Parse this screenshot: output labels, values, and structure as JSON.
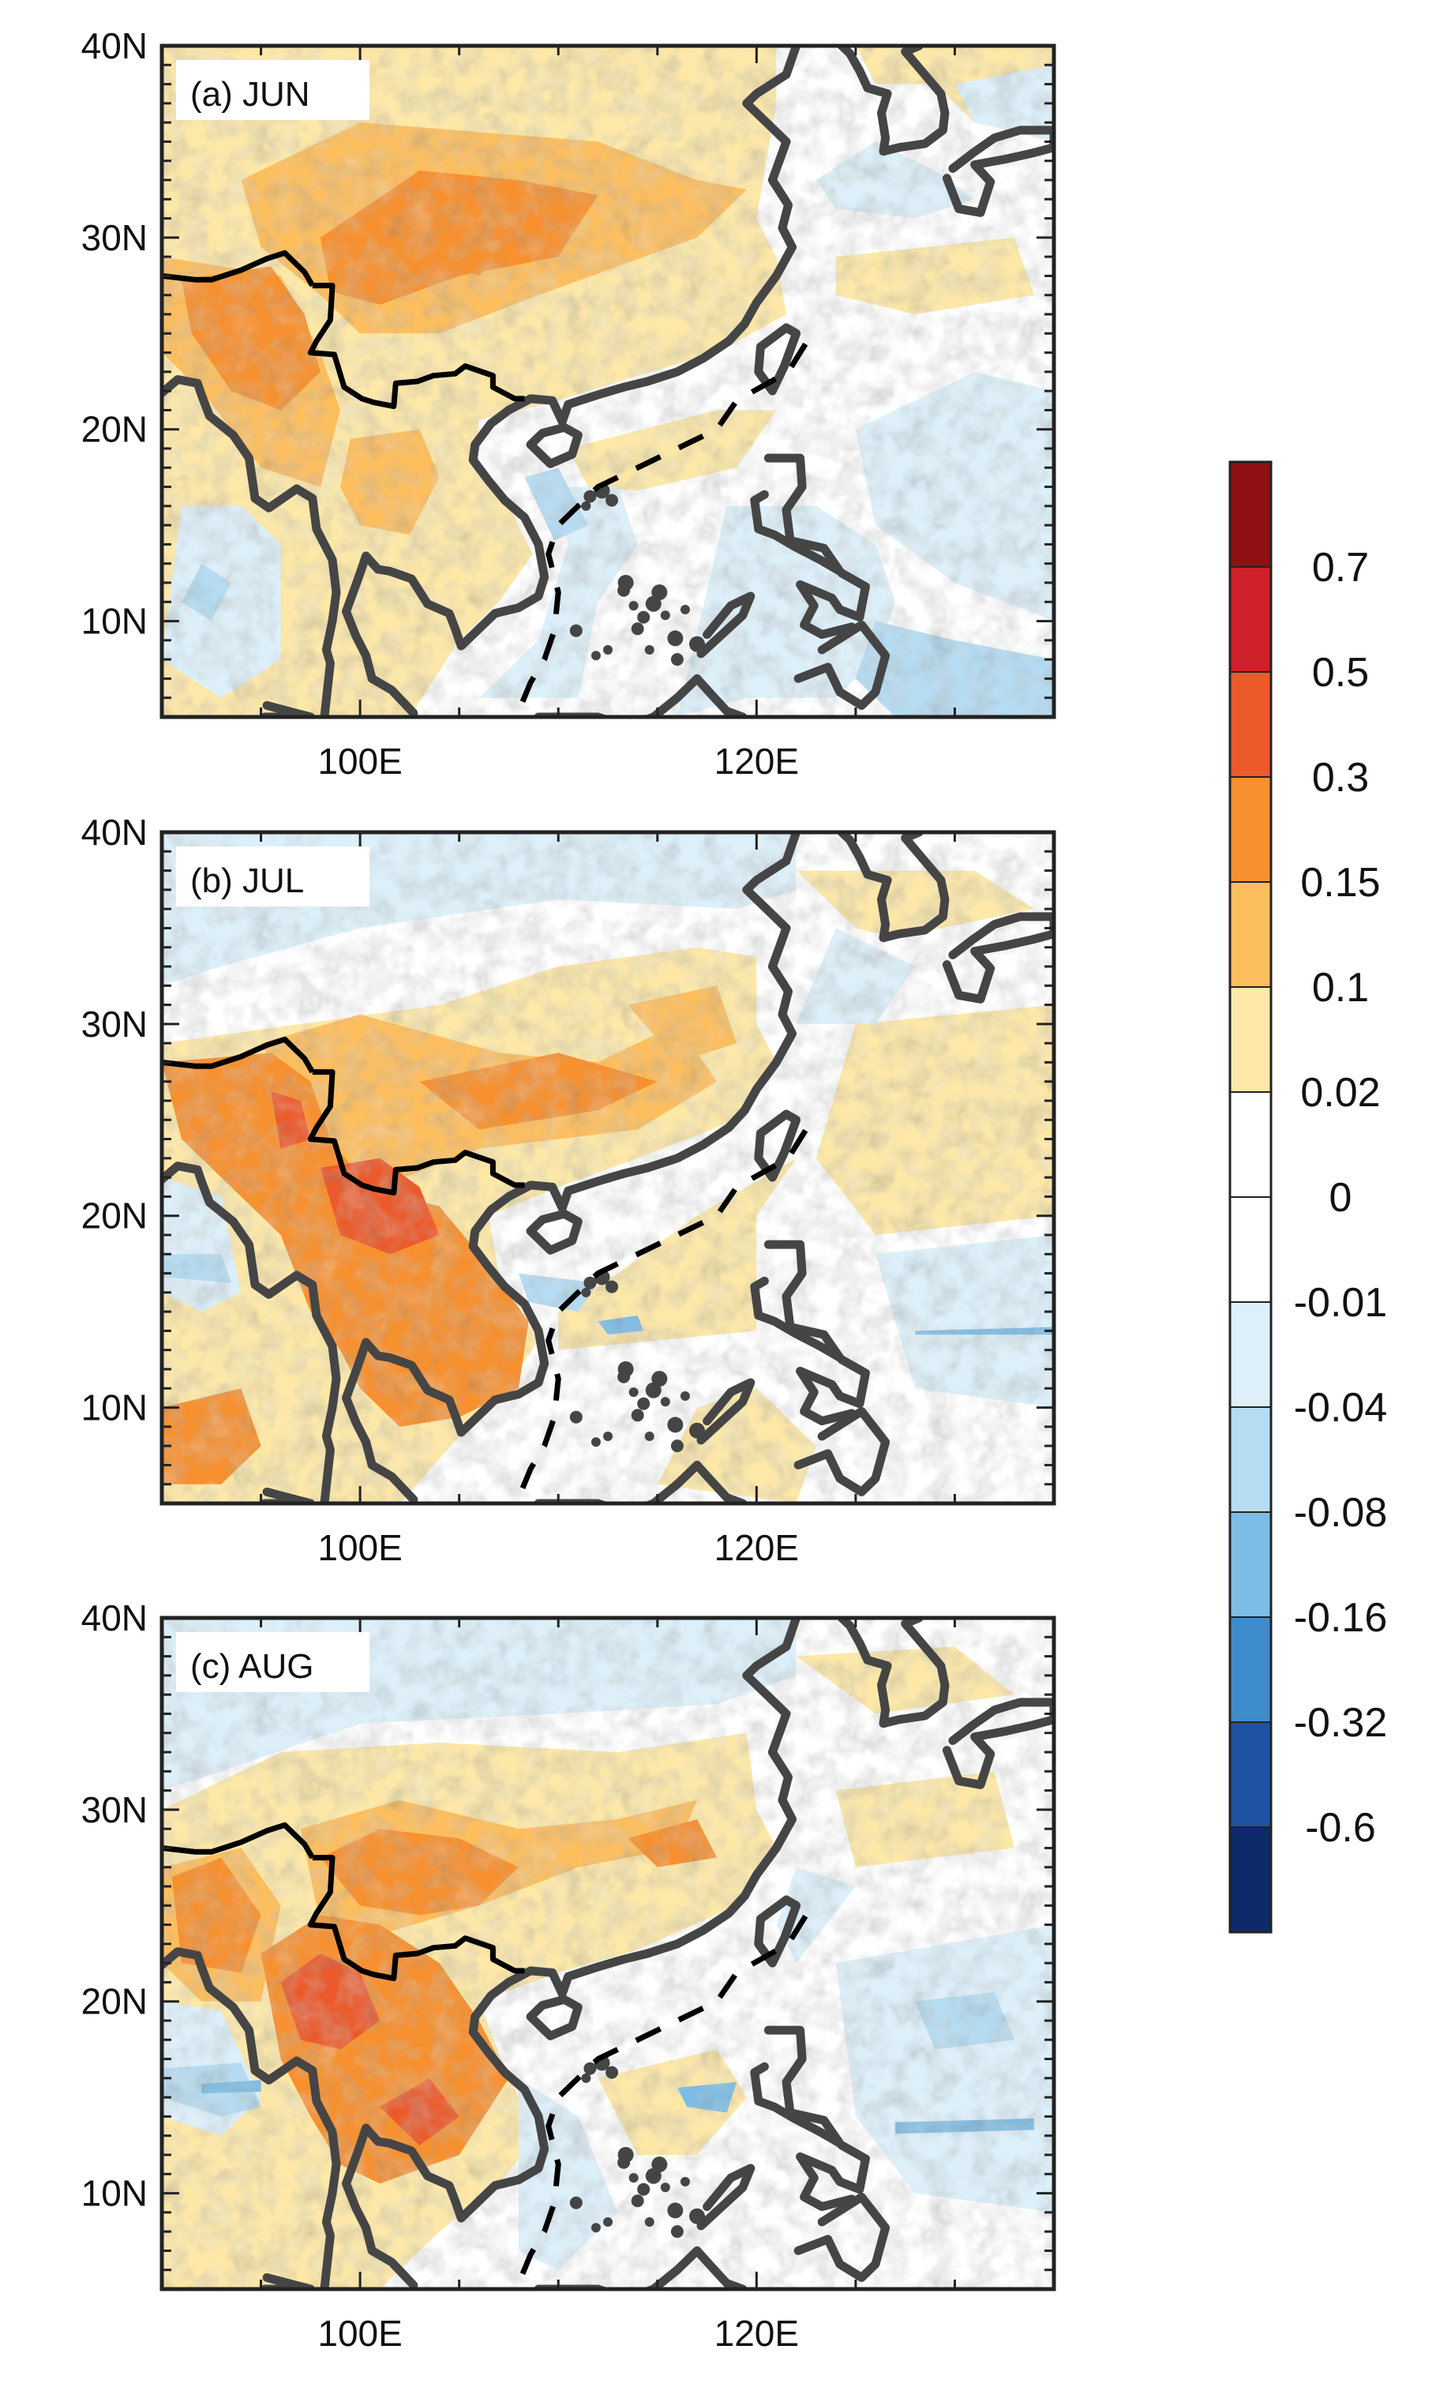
{
  "map": {
    "region": "South and East Asia, western North Pacific",
    "longitude_range": [
      90,
      135
    ],
    "latitude_range": [
      5,
      40
    ],
    "lon_tick_labels": [
      "100E",
      "120E"
    ],
    "lat_tick_labels": [
      "40N",
      "30N",
      "20N",
      "10N"
    ]
  },
  "panels": [
    {
      "label": "(a) JUN",
      "month": "JUN"
    },
    {
      "label": "(b) JUL",
      "month": "JUL"
    },
    {
      "label": "(c) AUG",
      "month": "AUG"
    }
  ],
  "colorbar": {
    "labels": [
      "0.7",
      "0.5",
      "0.3",
      "0.15",
      "0.1",
      "0.02",
      "0",
      "-0.01",
      "-0.04",
      "-0.08",
      "-0.16",
      "-0.32",
      "-0.6"
    ],
    "colors": [
      "#8e1014",
      "#d0202a",
      "#ec5a2c",
      "#f7902f",
      "#fdbe5e",
      "#fde8a8",
      "#ffffff",
      "#ffffff",
      "#ddf0fa",
      "#b5dcf3",
      "#7cbde6",
      "#3f8ccc",
      "#1f52a2",
      "#0f2a6b"
    ]
  },
  "colors": {
    "coastline": "#454545",
    "border": "#000000",
    "frame": "#222222"
  }
}
